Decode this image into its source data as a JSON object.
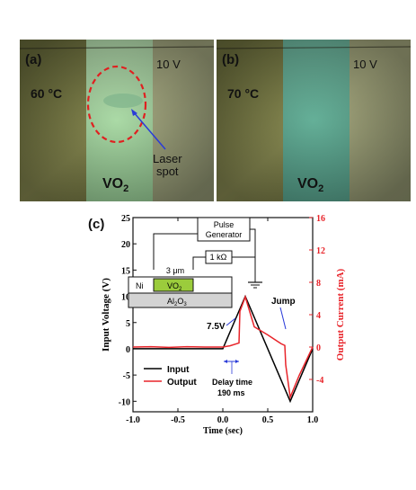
{
  "panel_a": {
    "label": "(a)",
    "temperature": "60 °C",
    "voltage": "10 V",
    "material": "VO",
    "material_sub": "2",
    "annotation_line1": "Laser",
    "annotation_line2": "spot"
  },
  "panel_b": {
    "label": "(b)",
    "temperature": "70 °C",
    "voltage": "10 V",
    "material": "VO",
    "material_sub": "2"
  },
  "panel_c": {
    "label": "(c)",
    "circuit": {
      "pulse_generator_line1": "Pulse",
      "pulse_generator_line2": "Generator",
      "resistor": "1 kΩ",
      "gap": "3 μm",
      "electrode": "Ni",
      "channel": "VO",
      "channel_sub": "2",
      "substrate": "Al",
      "substrate_sub": "2",
      "substrate_tail": "O",
      "substrate_sub2": "3"
    },
    "annotations": {
      "threshold": "7.5V",
      "jump": "Jump",
      "delay_line1": "Delay time",
      "delay_line2": "190 ms"
    }
  },
  "colors": {
    "input": "#000000",
    "output": "#e8242a"
  },
  "chart_data": {
    "type": "line",
    "xlabel": "Time (sec)",
    "ylabel": "Input Voltage (V)",
    "ylabel_right": "Output Current (mA)",
    "xlim": [
      -1.0,
      1.0
    ],
    "ylim": [
      -12,
      25
    ],
    "ylim_right": [
      -8,
      16
    ],
    "x_ticks": [
      "-1.0",
      "-0.5",
      "0.0",
      "0.5",
      "1.0"
    ],
    "y_ticks": [
      "-10",
      "-5",
      "0",
      "5",
      "10",
      "15",
      "20",
      "25"
    ],
    "y_ticks_right": [
      "-4",
      "0",
      "4",
      "8",
      "12",
      "16"
    ],
    "legend": "lower-left",
    "series": [
      {
        "name": "Input",
        "axis": "left",
        "x": [
          -1.0,
          0.0,
          0.25,
          0.75,
          1.0
        ],
        "y": [
          0,
          0,
          10,
          -10,
          0
        ]
      },
      {
        "name": "Output",
        "axis": "right",
        "x": [
          -1.0,
          -0.8,
          -0.6,
          -0.4,
          -0.2,
          0.0,
          0.08,
          0.18,
          0.19,
          0.25,
          0.35,
          0.5,
          0.65,
          0.69,
          0.7,
          0.75,
          0.85,
          1.0
        ],
        "y": [
          0,
          0.05,
          -0.05,
          0.05,
          0,
          0,
          0.15,
          0.5,
          4.4,
          6.2,
          2.5,
          1.5,
          0.4,
          0.2,
          -2.2,
          -6.2,
          -3.5,
          0
        ]
      }
    ]
  }
}
